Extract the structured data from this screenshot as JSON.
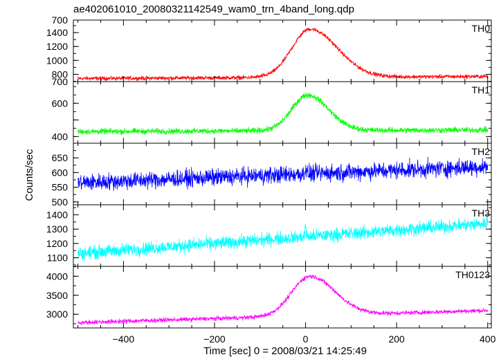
{
  "chart_data": {
    "type": "line",
    "title": "ae402061010_20080321142549_wam0_trn_4band_long.qdp",
    "xlabel": "Time [sec] 0 = 2008/03/21 14:25:49",
    "ylabel": "Counts/sec",
    "xlim": [
      -510,
      408
    ],
    "x_ticks": [
      -400,
      -200,
      0,
      200,
      400
    ],
    "x_ticklabels": [
      "−400",
      "−200",
      "0",
      "200",
      "400"
    ],
    "grid": false,
    "panels": [
      {
        "name": "TH0",
        "color": "#ff0000",
        "ylim": [
          695,
          1580
        ],
        "y_ticklabels": [
          {
            "value": 800,
            "label": "800"
          },
          {
            "value": 1000,
            "label": "1000"
          },
          {
            "value": 1200,
            "label": "1200"
          },
          {
            "value": 1400,
            "label": "1400"
          }
        ],
        "y_edge_label": {
          "value": 700,
          "label": "700"
        },
        "baseline": [
          740,
          770
        ],
        "peak": 1450,
        "peak_x": 10,
        "rise": 40,
        "decay": 60,
        "noise": 25
      },
      {
        "name": "TH1",
        "color": "#00ff00",
        "ylim": [
          360,
          730
        ],
        "y_ticklabels": [
          {
            "value": 400,
            "label": "400"
          },
          {
            "value": 500,
            "label": ""
          },
          {
            "value": 600,
            "label": "600"
          }
        ],
        "y_edge_label": {
          "value": 700,
          "label": "700"
        },
        "baseline": [
          430,
          440
        ],
        "peak": 650,
        "peak_x": 5,
        "rise": 35,
        "decay": 45,
        "noise": 15
      },
      {
        "name": "TH2",
        "color": "#0000ff",
        "ylim": [
          490,
          700
        ],
        "y_ticklabels": [
          {
            "value": 500,
            "label": "500"
          },
          {
            "value": 550,
            "label": "550"
          },
          {
            "value": 600,
            "label": "600"
          },
          {
            "value": 650,
            "label": "650"
          }
        ],
        "baseline": [
          565,
          620
        ],
        "peak": 620,
        "peak_x": 0,
        "rise": 1,
        "decay": 1,
        "noise": 25
      },
      {
        "name": "TH3",
        "color": "#00ffff",
        "ylim": [
          1040,
          1470
        ],
        "y_ticklabels": [
          {
            "value": 1100,
            "label": "1100"
          },
          {
            "value": 1200,
            "label": "1200"
          },
          {
            "value": 1300,
            "label": "1300"
          },
          {
            "value": 1400,
            "label": "1400"
          }
        ],
        "baseline": [
          1130,
          1340
        ],
        "peak": 1340,
        "peak_x": 0,
        "rise": 1,
        "decay": 1,
        "noise": 40
      },
      {
        "name": "TH0123",
        "color": "#ff00ff",
        "ylim": [
          2640,
          4260
        ],
        "y_ticklabels": [
          {
            "value": 3000,
            "label": "3000"
          },
          {
            "value": 3500,
            "label": "3500"
          },
          {
            "value": 4000,
            "label": "4000"
          }
        ],
        "baseline": [
          2780,
          3100
        ],
        "peak": 4000,
        "peak_x": 10,
        "rise": 40,
        "decay": 55,
        "noise": 50
      }
    ]
  }
}
